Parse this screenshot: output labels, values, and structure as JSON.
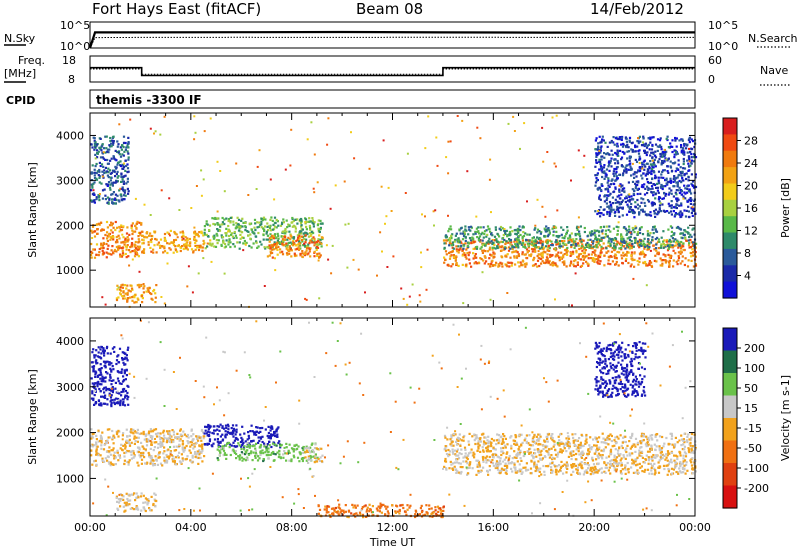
{
  "header": {
    "station": "Fort Hays East (fitACF)",
    "beam": "Beam 08",
    "date": "14/Feb/2012"
  },
  "panels": {
    "nsky": {
      "label": "N.Sky",
      "right_label": "N.Search",
      "ticks_left": [
        "10^5",
        "10^0"
      ],
      "ticks_right": [
        "10^5",
        "10^0"
      ]
    },
    "freq": {
      "label_top": "Freq.",
      "label_bottom": "[MHz]",
      "right_label": "Nave",
      "ticks_left": [
        "18",
        "8"
      ],
      "ticks_right": [
        "60",
        "0"
      ]
    },
    "cpid": {
      "label": "CPID",
      "program": "themis -3300 IF"
    }
  },
  "xaxis": {
    "label": "Time UT",
    "ticks": [
      "00:00",
      "04:00",
      "08:00",
      "12:00",
      "16:00",
      "20:00",
      "00:00"
    ]
  },
  "colorbars": {
    "power": {
      "label": "Power [dB]",
      "ticks": [
        "28",
        "24",
        "20",
        "16",
        "12",
        "8",
        "4"
      ],
      "colors": [
        "#d81e1e",
        "#f04a12",
        "#f07a0e",
        "#f2a214",
        "#f2cc1a",
        "#a8d040",
        "#58b848",
        "#2e8a6a",
        "#2a5a9a",
        "#1a2aa8",
        "#1010d8"
      ]
    },
    "velocity": {
      "label": "Velocity [m s-1]",
      "ticks": [
        "200",
        "100",
        "50",
        "15",
        "-15",
        "-50",
        "-100",
        "-200"
      ],
      "colors": [
        "#1a1ab8",
        "#1f6e48",
        "#6ac24a",
        "#c8c8c8",
        "#f2a21c",
        "#f07012",
        "#e04010",
        "#d81010"
      ]
    }
  },
  "chart_data": [
    {
      "type": "line",
      "name": "N.Sky / N.Search",
      "x_range": [
        "00:00",
        "24:00"
      ],
      "series": [
        {
          "name": "N.Sky",
          "x": [
            0,
            0.2,
            2,
            6,
            10,
            14,
            18,
            22,
            24
          ],
          "y": [
            1,
            1000,
            1000,
            1100,
            1200,
            1000,
            900,
            1000,
            1000
          ]
        },
        {
          "name": "N.Search",
          "x": [
            0,
            0.2,
            2,
            6,
            10,
            14,
            18,
            22,
            24
          ],
          "y": [
            1,
            100,
            110,
            115,
            110,
            120,
            110,
            105,
            110
          ]
        }
      ]
    },
    {
      "type": "line",
      "name": "Freq / Nave",
      "series": [
        {
          "name": "Freq.",
          "x": [
            0,
            2.05,
            2.05,
            14,
            14,
            24
          ],
          "y": [
            13.5,
            13.5,
            10.5,
            10.5,
            13.5,
            13.5
          ]
        },
        {
          "name": "Nave",
          "x": [
            0,
            2.05,
            2.05,
            14,
            14,
            24
          ],
          "y": [
            30,
            30,
            18,
            18,
            30,
            30
          ]
        }
      ]
    },
    {
      "type": "heatmap",
      "name": "Power",
      "xlabel": "Time UT",
      "ylabel": "Slant Range [km]",
      "x_range_hours": [
        0,
        24
      ],
      "ylim": [
        180,
        4500
      ],
      "yticks": [
        1000,
        2000,
        3000,
        4000
      ],
      "colorbar_label": "Power [dB]",
      "regions": [
        {
          "t0": 0.0,
          "t1": 2.0,
          "r0": 1300,
          "r1": 2100,
          "value": 24
        },
        {
          "t0": 2.0,
          "t1": 4.5,
          "r0": 1400,
          "r1": 1900,
          "value": 22
        },
        {
          "t0": 4.5,
          "t1": 9.2,
          "r0": 1500,
          "r1": 2200,
          "value": 14
        },
        {
          "t0": 7.0,
          "t1": 9.2,
          "r0": 1300,
          "r1": 1800,
          "value": 24
        },
        {
          "t0": 1.0,
          "t1": 2.6,
          "r0": 300,
          "r1": 700,
          "value": 22
        },
        {
          "t0": 14.0,
          "t1": 24.0,
          "r0": 1100,
          "r1": 1700,
          "value": 24
        },
        {
          "t0": 14.0,
          "t1": 24.0,
          "r0": 1500,
          "r1": 2000,
          "value": 12
        },
        {
          "t0": 0.0,
          "t1": 1.5,
          "r0": 2500,
          "r1": 4000,
          "value": 8
        },
        {
          "t0": 20.0,
          "t1": 24.0,
          "r0": 2200,
          "r1": 4000,
          "value": 6
        }
      ]
    },
    {
      "type": "heatmap",
      "name": "Velocity",
      "xlabel": "Time UT",
      "ylabel": "Slant Range [km]",
      "x_range_hours": [
        0,
        24
      ],
      "ylim": [
        180,
        4500
      ],
      "yticks": [
        1000,
        2000,
        3000,
        4000
      ],
      "colorbar_label": "Velocity [m s-1]",
      "regions": [
        {
          "t0": 0.0,
          "t1": 4.5,
          "r0": 1300,
          "r1": 2100,
          "value": 0
        },
        {
          "t0": 0.0,
          "t1": 1.5,
          "r0": 2600,
          "r1": 3900,
          "value": 200
        },
        {
          "t0": 4.5,
          "t1": 7.5,
          "r0": 1700,
          "r1": 2200,
          "value": 200
        },
        {
          "t0": 5.0,
          "t1": 9.0,
          "r0": 1400,
          "r1": 1800,
          "value": 50
        },
        {
          "t0": 8.5,
          "t1": 9.2,
          "r0": 1350,
          "r1": 1700,
          "value": 0
        },
        {
          "t0": 1.0,
          "t1": 2.6,
          "r0": 300,
          "r1": 700,
          "value": 0
        },
        {
          "t0": 9.0,
          "t1": 14.0,
          "r0": 180,
          "r1": 450,
          "value": -50
        },
        {
          "t0": 14.0,
          "t1": 24.0,
          "r0": 1100,
          "r1": 2000,
          "value": 0
        },
        {
          "t0": 20.0,
          "t1": 22.0,
          "r0": 2800,
          "r1": 4000,
          "value": 200
        }
      ]
    }
  ]
}
